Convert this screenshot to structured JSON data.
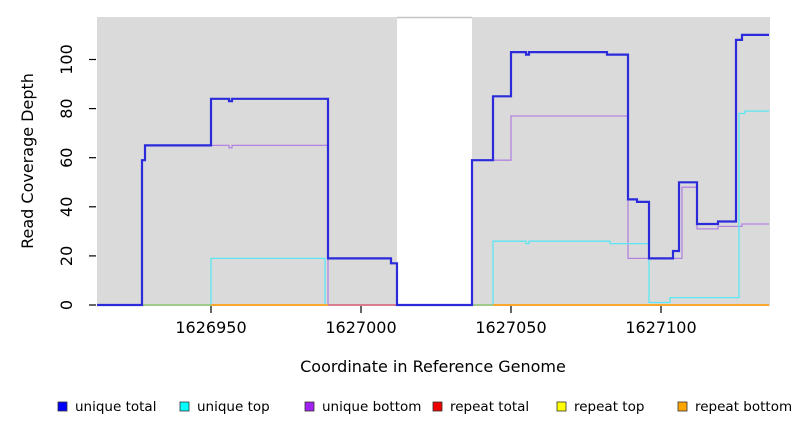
{
  "chart_data": {
    "type": "line",
    "subtype": "step-coverage-plot",
    "title": "",
    "xlabel": "Coordinate in Reference Genome",
    "ylabel": "Read Coverage Depth",
    "xlim": [
      1626912,
      1627136
    ],
    "ylim": [
      0,
      117
    ],
    "x_ticks": [
      "1626950",
      "1627000",
      "1627050",
      "1627100"
    ],
    "x_tick_values": [
      1626950,
      1627000,
      1627050,
      1627100
    ],
    "y_ticks": [
      "0",
      "20",
      "40",
      "60",
      "80",
      "100"
    ],
    "y_tick_values": [
      0,
      20,
      40,
      60,
      80,
      100
    ],
    "grid": false,
    "plot_bg_color": "#DADADA",
    "gap_region": {
      "x0": 1627012,
      "x1": 1627037,
      "fill": "#FFFFFF",
      "top_line_color": "#C4C4C4"
    },
    "legend": {
      "position": "bottom",
      "entries": [
        {
          "label": "unique total",
          "color": "#0000FF"
        },
        {
          "label": "unique top",
          "color": "#00FFFF"
        },
        {
          "label": "unique bottom",
          "color": "#A020F0"
        },
        {
          "label": "repeat total",
          "color": "#EE0000"
        },
        {
          "label": "repeat top",
          "color": "#FFFF00"
        },
        {
          "label": "repeat bottom",
          "color": "#FFA500"
        }
      ]
    },
    "series": [
      {
        "name": "repeat total",
        "color": "#EE3B3B",
        "width": 1.2,
        "points": [
          [
            1626912,
            0
          ],
          [
            1627136,
            0
          ]
        ]
      },
      {
        "name": "repeat top",
        "color": "#F2F25A",
        "width": 1.2,
        "points": [
          [
            1626912,
            0
          ],
          [
            1627136,
            0
          ]
        ]
      },
      {
        "name": "repeat bottom",
        "color": "#FFA51E",
        "width": 1.6,
        "points": [
          [
            1626912,
            0
          ],
          [
            1627136,
            0
          ]
        ]
      },
      {
        "name": "unique bottom",
        "color": "#B383E0",
        "width": 1.3,
        "points": [
          [
            1626912,
            0
          ],
          [
            1626927,
            0
          ],
          [
            1626927,
            59
          ],
          [
            1626928,
            59
          ],
          [
            1626928,
            65
          ],
          [
            1626956,
            65
          ],
          [
            1626956,
            64
          ],
          [
            1626957,
            64
          ],
          [
            1626957,
            65
          ],
          [
            1626989,
            65
          ],
          [
            1626989,
            0
          ],
          [
            1627037,
            0
          ],
          [
            1627037,
            59
          ],
          [
            1627050,
            59
          ],
          [
            1627050,
            77
          ],
          [
            1627089,
            77
          ],
          [
            1627089,
            19
          ],
          [
            1627107,
            19
          ],
          [
            1627107,
            48
          ],
          [
            1627112,
            48
          ],
          [
            1627112,
            31
          ],
          [
            1627119,
            31
          ],
          [
            1627119,
            32
          ],
          [
            1627127,
            32
          ],
          [
            1627127,
            33
          ],
          [
            1627136,
            33
          ]
        ]
      },
      {
        "name": "unique top",
        "color": "#5CE6F2",
        "width": 1.3,
        "points": [
          [
            1626912,
            0
          ],
          [
            1626950,
            0
          ],
          [
            1626950,
            19
          ],
          [
            1626988,
            19
          ],
          [
            1626988,
            0
          ],
          [
            1627044,
            0
          ],
          [
            1627044,
            26
          ],
          [
            1627055,
            26
          ],
          [
            1627055,
            25
          ],
          [
            1627056,
            25
          ],
          [
            1627056,
            26
          ],
          [
            1627083,
            26
          ],
          [
            1627083,
            25
          ],
          [
            1627096,
            25
          ],
          [
            1627096,
            1
          ],
          [
            1627103,
            1
          ],
          [
            1627103,
            3
          ],
          [
            1627126,
            3
          ],
          [
            1627126,
            78
          ],
          [
            1627128,
            78
          ],
          [
            1627128,
            79
          ],
          [
            1627136,
            79
          ]
        ]
      },
      {
        "name": "unique total",
        "color": "#2B2BDB",
        "width": 2.2,
        "points": [
          [
            1626912,
            0
          ],
          [
            1626927,
            0
          ],
          [
            1626927,
            59
          ],
          [
            1626928,
            59
          ],
          [
            1626928,
            65
          ],
          [
            1626950,
            65
          ],
          [
            1626950,
            84
          ],
          [
            1626956,
            84
          ],
          [
            1626956,
            83
          ],
          [
            1626957,
            83
          ],
          [
            1626957,
            84
          ],
          [
            1626989,
            84
          ],
          [
            1626989,
            19
          ],
          [
            1627010,
            19
          ],
          [
            1627010,
            17
          ],
          [
            1627012,
            17
          ],
          [
            1627012,
            0
          ],
          [
            1627037,
            0
          ],
          [
            1627037,
            59
          ],
          [
            1627044,
            59
          ],
          [
            1627044,
            85
          ],
          [
            1627050,
            85
          ],
          [
            1627050,
            103
          ],
          [
            1627055,
            103
          ],
          [
            1627055,
            102
          ],
          [
            1627056,
            102
          ],
          [
            1627056,
            103
          ],
          [
            1627082,
            103
          ],
          [
            1627082,
            102
          ],
          [
            1627089,
            102
          ],
          [
            1627089,
            43
          ],
          [
            1627092,
            43
          ],
          [
            1627092,
            42
          ],
          [
            1627096,
            42
          ],
          [
            1627096,
            19
          ],
          [
            1627104,
            19
          ],
          [
            1627104,
            22
          ],
          [
            1627106,
            22
          ],
          [
            1627106,
            50
          ],
          [
            1627112,
            50
          ],
          [
            1627112,
            33
          ],
          [
            1627119,
            33
          ],
          [
            1627119,
            34
          ],
          [
            1627125,
            34
          ],
          [
            1627125,
            108
          ],
          [
            1627127,
            108
          ],
          [
            1627127,
            110
          ],
          [
            1627136,
            110
          ]
        ]
      }
    ],
    "zero_line_visible_segments": [
      {
        "x0": 1626927,
        "x1": 1626950,
        "color": "#90CE90",
        "note": "cyan+yellow overlap renders green"
      },
      {
        "x0": 1626950,
        "x1": 1626989,
        "color": "#FFA51E",
        "note": "repeat bottom orange"
      },
      {
        "x0": 1626989,
        "x1": 1627012,
        "color": "#E0688C",
        "note": "red+purple overlap renders pink"
      },
      {
        "x0": 1627037,
        "x1": 1627044,
        "color": "#90CE90",
        "note": "cyan+yellow overlap renders green"
      },
      {
        "x0": 1627044,
        "x1": 1627136,
        "color": "#FFA51E",
        "note": "repeat bottom orange"
      }
    ]
  }
}
